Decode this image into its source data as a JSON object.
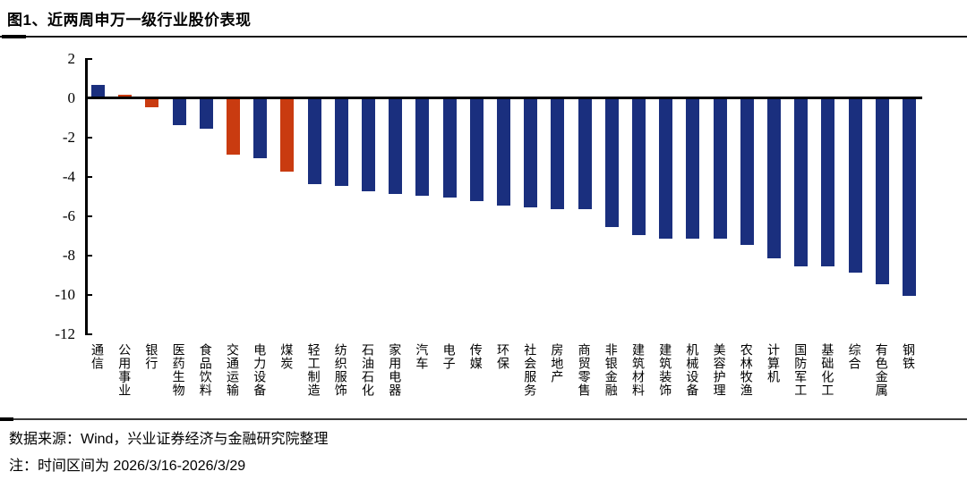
{
  "page": {
    "title": "图1、近两周申万一级行业股价表现",
    "source": "数据来源：Wind，兴业证券经济与金融研究院整理",
    "note": "注：时间区间为 2026/3/16-2026/3/29"
  },
  "chart_data": {
    "type": "bar",
    "title": "近两周申万一级行业股价表现",
    "categories": [
      "通信",
      "公用事业",
      "银行",
      "医药生物",
      "食品饮料",
      "交通运输",
      "电力设备",
      "煤炭",
      "轻工制造",
      "纺织服饰",
      "石油石化",
      "家用电器",
      "汽车",
      "电子",
      "传媒",
      "环保",
      "社会服务",
      "房地产",
      "商贸零售",
      "非银金融",
      "建筑材料",
      "建筑装饰",
      "机械设备",
      "美容护理",
      "农林牧渔",
      "计算机",
      "国防军工",
      "基础化工",
      "综合",
      "有色金属",
      "钢铁"
    ],
    "values": [
      0.6,
      0.1,
      -0.4,
      -1.3,
      -1.5,
      -2.8,
      -3.0,
      -3.7,
      -4.3,
      -4.4,
      -4.7,
      -4.8,
      -4.9,
      -5.0,
      -5.2,
      -5.4,
      -5.5,
      -5.6,
      -5.6,
      -6.5,
      -6.9,
      -7.1,
      -7.1,
      -7.1,
      -7.4,
      -8.1,
      -8.5,
      -8.5,
      -8.8,
      -9.4,
      -10.0
    ],
    "highlight_indices": [
      1,
      2,
      5,
      7
    ],
    "colors": {
      "bar": "#1A2F7E",
      "highlight": "#C93B10",
      "axis": "#000000"
    },
    "xlabel": "",
    "ylabel": "",
    "ylim": [
      -12,
      2
    ],
    "y_ticks": [
      2,
      0,
      -2,
      -4,
      -6,
      -8,
      -10,
      -12
    ],
    "grid": false,
    "legend": false
  }
}
